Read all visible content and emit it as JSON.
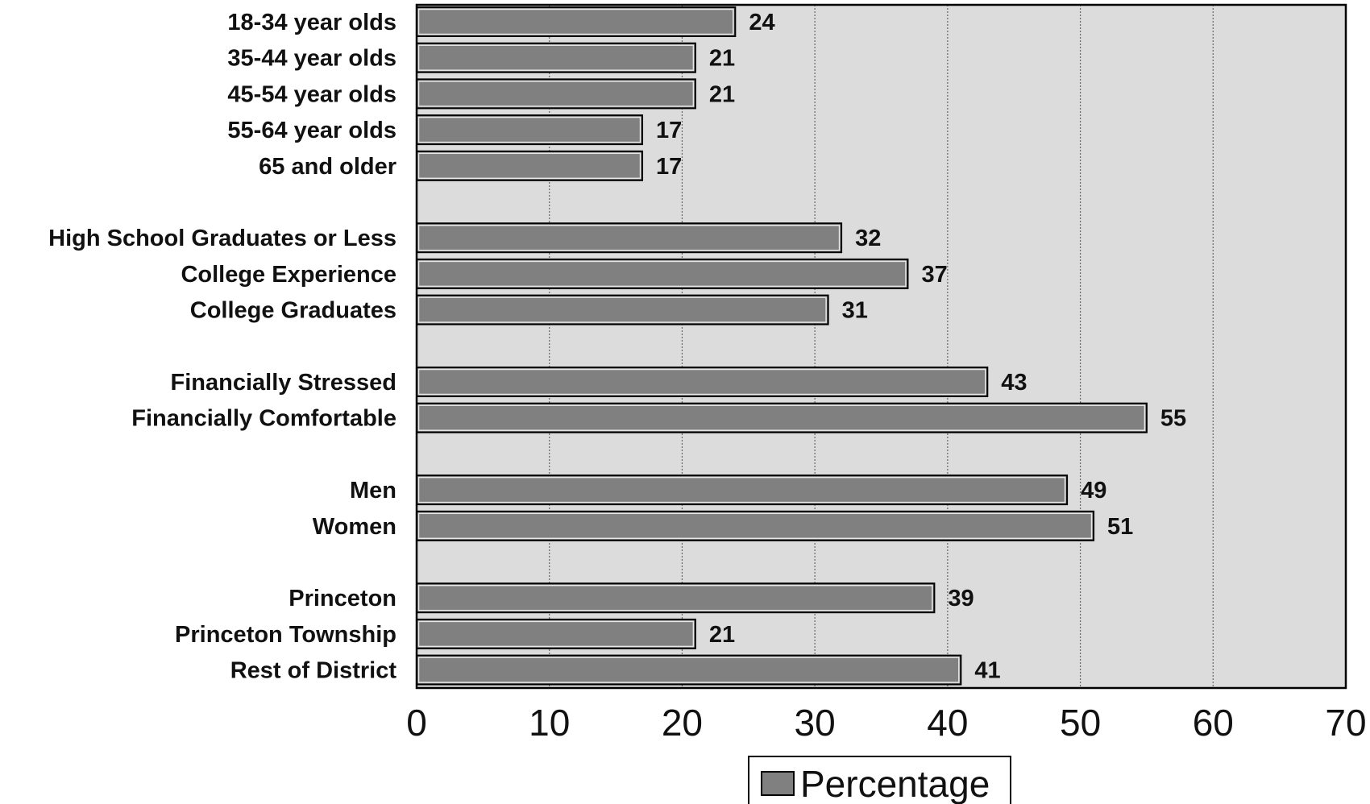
{
  "chart_data": {
    "type": "bar",
    "orientation": "horizontal",
    "categories": [
      "18-34 year olds",
      "35-44 year olds",
      "45-54 year olds",
      "55-64 year olds",
      "65 and older",
      "High School Graduates or Less",
      "College Experience",
      "College Graduates",
      "Financially Stressed",
      "Financially Comfortable",
      "Men",
      "Women",
      "Princeton",
      "Princeton Township",
      "Rest of District"
    ],
    "groups": [
      [
        "18-34 year olds",
        "35-44 year olds",
        "45-54 year olds",
        "55-64 year olds",
        "65 and older"
      ],
      [
        "High School Graduates or Less",
        "College Experience",
        "College Graduates"
      ],
      [
        "Financially Stressed",
        "Financially Comfortable"
      ],
      [
        "Men",
        "Women"
      ],
      [
        "Princeton",
        "Princeton Township",
        "Rest of District"
      ]
    ],
    "series": [
      {
        "name": "Percentage",
        "values": [
          24,
          21,
          21,
          17,
          17,
          32,
          37,
          31,
          43,
          55,
          49,
          51,
          39,
          21,
          41
        ]
      }
    ],
    "xlim": [
      0,
      70
    ],
    "xticks": [
      0,
      10,
      20,
      30,
      40,
      50,
      60,
      70
    ],
    "grid": "vertical-dashed",
    "legend_position": "bottom-center",
    "colors": {
      "bar": "#808080",
      "plot_bg": "#dcdcdc",
      "grid": "#666666",
      "axis": "#000000"
    }
  }
}
